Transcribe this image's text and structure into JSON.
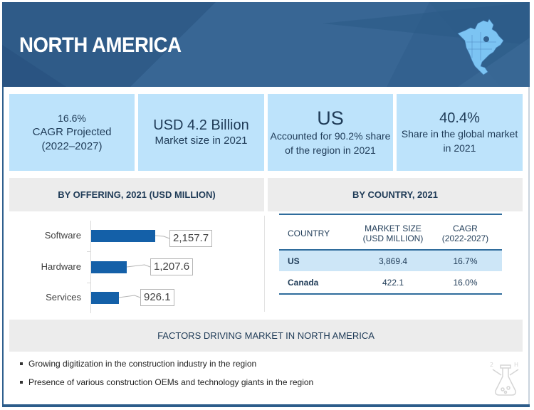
{
  "banner": {
    "title": "NORTH AMERICA",
    "map_icon": "north-america-map-icon",
    "color": "#33618f"
  },
  "kpis": [
    {
      "line1": "16.6%",
      "line2": "CAGR Projected",
      "line3": "(2022–2027)"
    },
    {
      "line1": "USD 4.2 Billion",
      "line2": "Market size in 2021"
    },
    {
      "line1": "US",
      "line2": "Accounted for 90.2% share",
      "line3": "of the region in 2021"
    },
    {
      "line1": "40.4%",
      "line2": "Share in the global market",
      "line3": "in 2021"
    }
  ],
  "offering": {
    "heading": "BY OFFERING, 2021 (USD MILLION)",
    "value_labels": [
      "2,157.7",
      "1,207.6",
      "926.1"
    ]
  },
  "chart_data": {
    "type": "bar",
    "orientation": "horizontal",
    "title": "BY OFFERING, 2021 (USD MILLION)",
    "categories": [
      "Software",
      "Hardware",
      "Services"
    ],
    "values": [
      2157.7,
      1207.6,
      926.1
    ],
    "xlabel": "",
    "ylabel": "",
    "bar_color": "#1460a8",
    "grid": false
  },
  "country": {
    "heading": "BY COUNTRY, 2021",
    "columns": [
      "COUNTRY",
      "MARKET SIZE",
      "(USD MILLION)",
      "CAGR",
      "(2022-2027)"
    ],
    "rows": [
      {
        "country": "US",
        "market_size": "3,869.4",
        "cagr": "16.7%"
      },
      {
        "country": "Canada",
        "market_size": "422.1",
        "cagr": "16.0%"
      }
    ],
    "highlight_color": "#cde6f7"
  },
  "factors": {
    "heading": "FACTORS DRIVING MARKET IN NORTH AMERICA",
    "items": [
      "Growing digitization in the construction industry in the region",
      "Presence of various construction OEMs and technology giants in the region"
    ],
    "watermark_icon": "chemistry-flask-icon"
  }
}
